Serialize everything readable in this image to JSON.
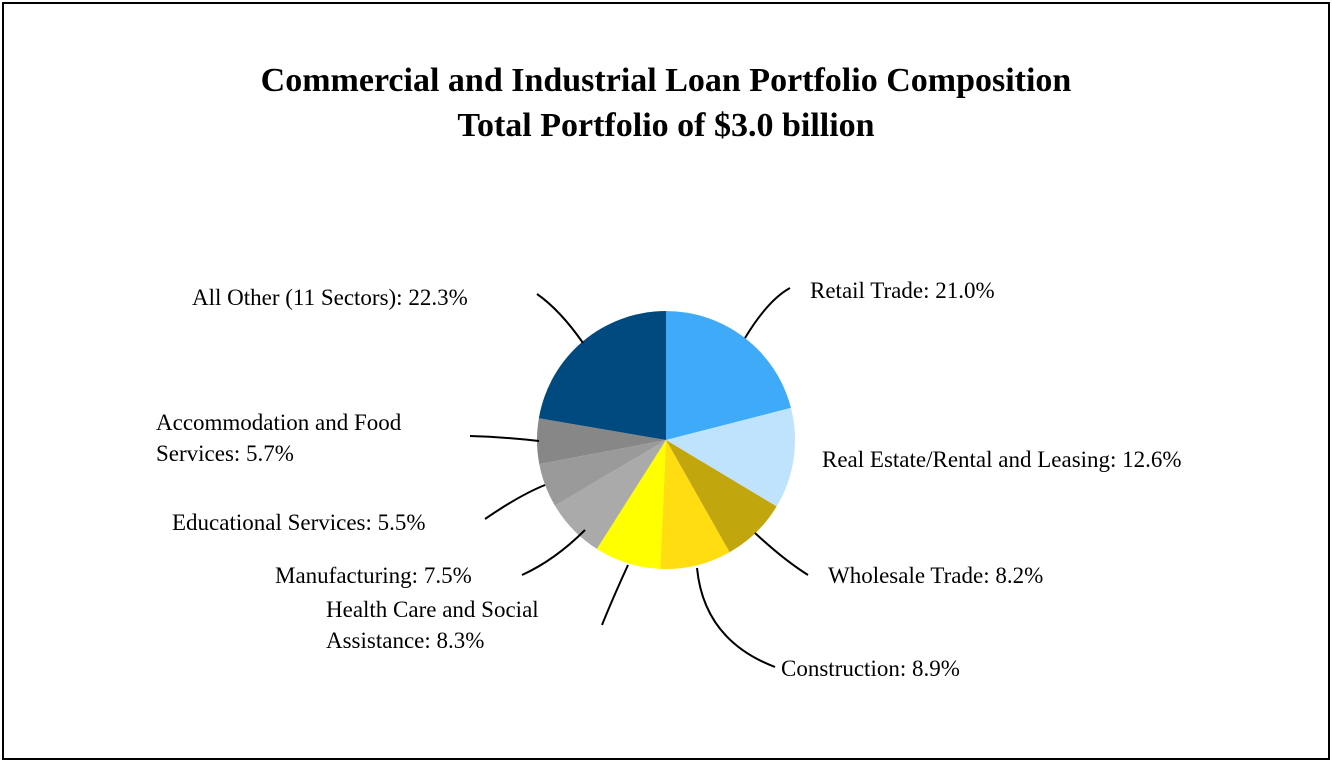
{
  "chart_data": {
    "type": "pie",
    "title": "Commercial and Industrial Loan Portfolio Composition",
    "subtitle": "Total Portfolio of $3.0 billion",
    "slices": [
      {
        "label": "Retail Trade: 21.0%",
        "value": 21.0,
        "color": "#3FAAF8"
      },
      {
        "label": "Real Estate/Rental and Leasing: 12.6%",
        "value": 12.6,
        "color": "#BFE3FC"
      },
      {
        "label": "Wholesale Trade: 8.2%",
        "value": 8.2,
        "color": "#C2A60E"
      },
      {
        "label": "Construction: 8.9%",
        "value": 8.9,
        "color": "#FFDD10"
      },
      {
        "label": "Health Care and Social Assistance: 8.3%",
        "value": 8.3,
        "color": "#FFFF00"
      },
      {
        "label": "Manufacturing: 7.5%",
        "value": 7.5,
        "color": "#AAAAAA"
      },
      {
        "label": "Educational Services: 5.5%",
        "value": 5.5,
        "color": "#9A9A9A"
      },
      {
        "label": "Accommodation and Food Services: 5.7%",
        "value": 5.7,
        "color": "#878787"
      },
      {
        "label": "All Other (11 Sectors): 22.3%",
        "value": 22.3,
        "color": "#004A80"
      }
    ],
    "legend": "none"
  }
}
